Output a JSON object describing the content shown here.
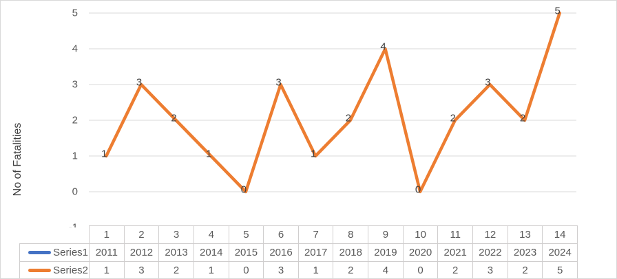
{
  "figure": {
    "ylabel": "No of Fatalities"
  },
  "chart_data": {
    "type": "line",
    "ylabel": "No of Fatalities",
    "ylim": [
      -1,
      5
    ],
    "yticks": [
      5,
      4,
      3,
      2,
      1,
      0,
      -1
    ],
    "grid": true,
    "data_labels": true,
    "data_table_shown": true,
    "legend_position": "left-of-data-table",
    "categories": [
      1,
      2,
      3,
      4,
      5,
      6,
      7,
      8,
      9,
      10,
      11,
      12,
      13,
      14
    ],
    "series": [
      {
        "name": "Series1",
        "color": "#4472C4",
        "values": [
          2011,
          2012,
          2013,
          2014,
          2015,
          2016,
          2017,
          2018,
          2019,
          2020,
          2021,
          2022,
          2023,
          2024
        ],
        "visible_in_plot": false
      },
      {
        "name": "Series2",
        "color": "#ED7D31",
        "values": [
          1,
          3,
          2,
          1,
          0,
          3,
          1,
          2,
          4,
          0,
          2,
          3,
          2,
          5
        ],
        "visible_in_plot": true
      }
    ]
  },
  "colors": {
    "background": "#FFFFFF",
    "figure_border": "#D9D9D9",
    "gridline": "#D9D9D9",
    "table_border": "#D0CECE",
    "axis_tick_text": "#595959",
    "table_text": "#595959",
    "data_label_text": "#404040",
    "axis_title_text": "#404040",
    "series1": "#4472C4",
    "series2": "#ED7D31"
  }
}
